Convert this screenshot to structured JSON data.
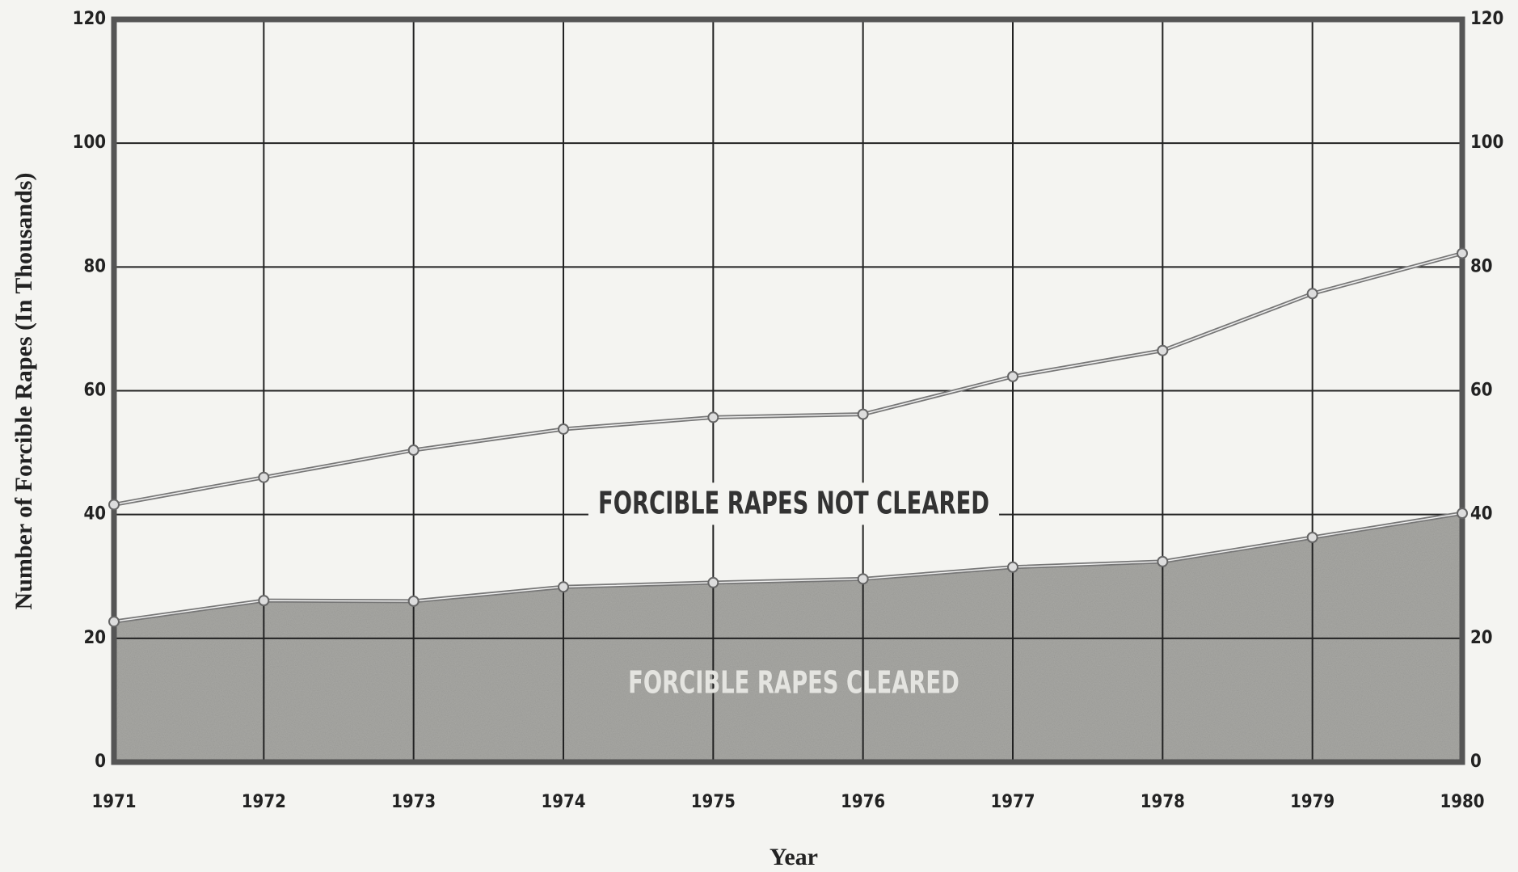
{
  "chart_data": {
    "type": "area",
    "stacked": true,
    "x_label": "Year",
    "y_label": "Number of Forcible Rapes (In Thousands)",
    "x": [
      1971,
      1972,
      1973,
      1974,
      1975,
      1976,
      1977,
      1978,
      1979,
      1980
    ],
    "series": [
      {
        "name": "FORCIBLE RAPES CLEARED",
        "color": "#a8a8a4",
        "values": [
          22.7,
          26.1,
          26,
          28.3,
          29,
          29.6,
          31.5,
          32.4,
          36.3,
          40.2
        ]
      },
      {
        "name": "FORCIBLE RAPES NOT CLEARED",
        "color": "#f4f4f1",
        "values": [
          18.9,
          19.9,
          24.4,
          25.5,
          26.7,
          26.6,
          30.8,
          34.1,
          39.4,
          42
        ]
      }
    ],
    "xlim": [
      1971,
      1980
    ],
    "xticks": [
      1971,
      1972,
      1973,
      1974,
      1975,
      1976,
      1977,
      1978,
      1979,
      1980
    ],
    "ylim": [
      0,
      120
    ],
    "yticks": [
      0,
      20,
      40,
      60,
      80,
      100,
      120
    ],
    "grid": true
  }
}
